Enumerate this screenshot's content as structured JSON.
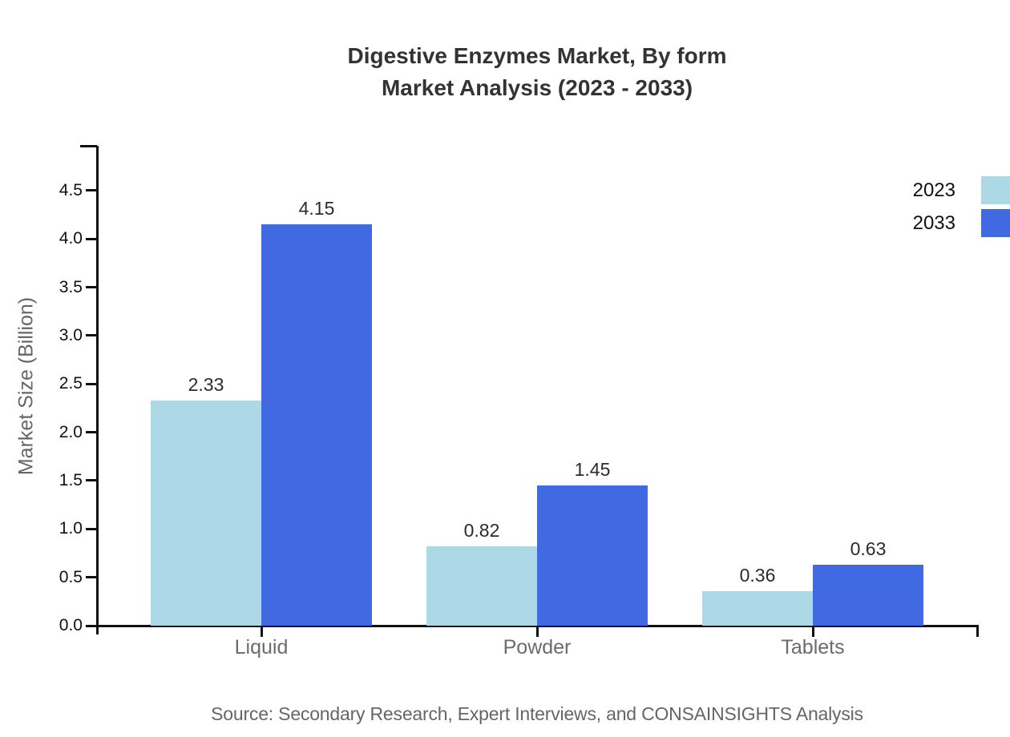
{
  "title": {
    "line1": "Digestive Enzymes Market, By form",
    "line2": "Market Analysis (2023 - 2033)"
  },
  "source": "Source: Secondary Research, Expert Interviews, and CONSAINSIGHTS Analysis",
  "chart_data": {
    "type": "bar",
    "categories": [
      "Liquid",
      "Powder",
      "Tablets"
    ],
    "series": [
      {
        "name": "2023",
        "color": "#ADD8E6",
        "values": [
          2.33,
          0.82,
          0.36
        ]
      },
      {
        "name": "2033",
        "color": "#4169E1",
        "values": [
          4.15,
          1.45,
          0.63
        ]
      }
    ],
    "title": "Digestive Enzymes Market, By form Market Analysis (2023 - 2033)",
    "xlabel": "",
    "ylabel": "Market Size (Billion)",
    "ylim": [
      0,
      5.0
    ],
    "y_tick_labels": [
      "0.0",
      "0.5",
      "1.0",
      "1.5",
      "2.0",
      "2.5",
      "3.0",
      "3.5",
      "4.0",
      "4.5"
    ],
    "y_tick_values": [
      0.0,
      0.5,
      1.0,
      1.5,
      2.0,
      2.5,
      3.0,
      3.5,
      4.0,
      4.5
    ],
    "value_label_decimals": 2,
    "grid": false,
    "legend_position": "top-right",
    "axis_color": "#111111",
    "text_color_muted": "#666666"
  }
}
